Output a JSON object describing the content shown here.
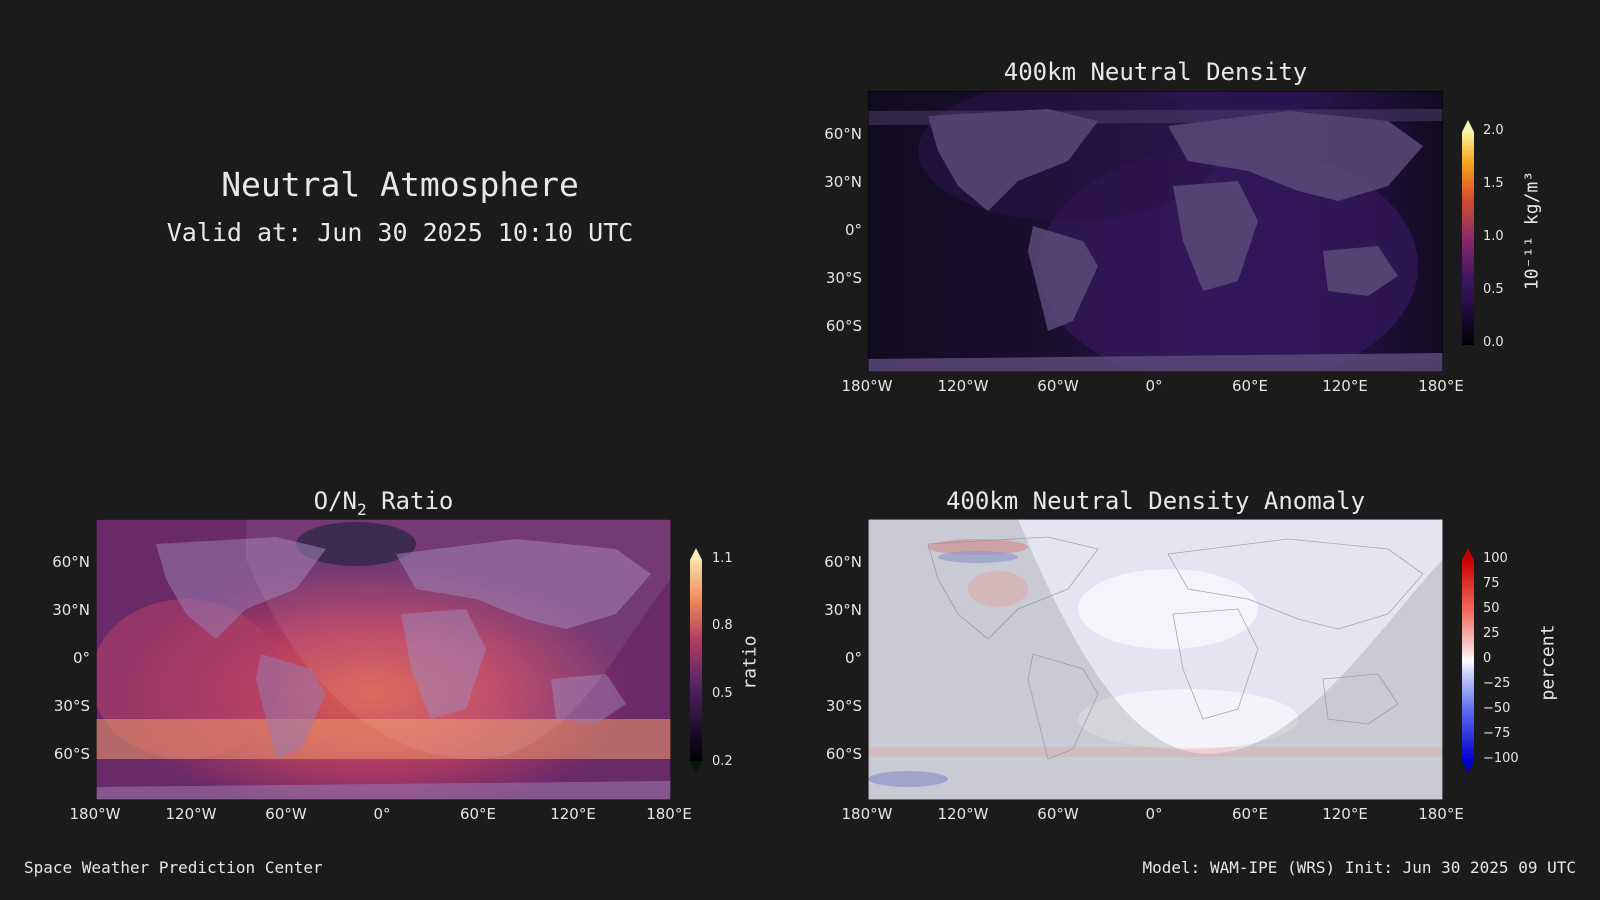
{
  "header": {
    "title": "Neutral Atmosphere",
    "valid_at": "Valid at: Jun 30 2025 10:10 UTC"
  },
  "footer": {
    "left": "Space Weather Prediction Center",
    "right": "Model: WAM-IPE (WRS) Init: Jun 30 2025 09 UTC"
  },
  "axes": {
    "lat_ticks": [
      "60°N",
      "30°N",
      "0°",
      "30°S",
      "60°S"
    ],
    "lon_ticks": [
      "180°W",
      "120°W",
      "60°W",
      "0°",
      "60°E",
      "120°E",
      "180°E"
    ]
  },
  "panels": {
    "density": {
      "title": "400km Neutral Density",
      "colorbar_label": "10⁻¹¹ kg/m³",
      "colorbar_ticks": [
        "2.0",
        "1.5",
        "1.0",
        "0.5",
        "0.0"
      ]
    },
    "on2": {
      "title_main": "O/N",
      "title_sub": "2",
      "title_end": " Ratio",
      "colorbar_label": "ratio",
      "colorbar_ticks": [
        "1.1",
        "0.8",
        "0.5",
        "0.2"
      ]
    },
    "anomaly": {
      "title": "400km Neutral Density Anomaly",
      "colorbar_label": "percent",
      "colorbar_ticks": [
        "100",
        "75",
        "50",
        "25",
        "0",
        "−25",
        "−50",
        "−75",
        "−100"
      ]
    }
  }
}
